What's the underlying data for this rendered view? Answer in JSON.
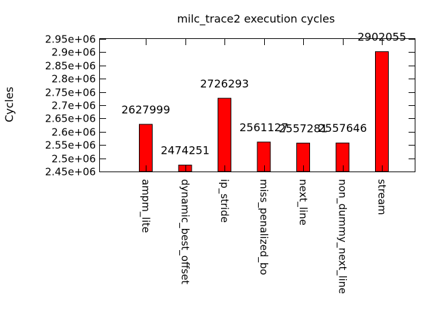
{
  "chart_data": {
    "type": "bar",
    "title": "milc_trace2 execution cycles",
    "xlabel": "",
    "ylabel": "Cycles",
    "categories": [
      "ampm_lite",
      "dynamic_best_offset",
      "ip_stride",
      "miss_penalized_bo",
      "next_line",
      "non_dummy_next_line",
      "stream"
    ],
    "values": [
      2627999,
      2474251,
      2726293,
      2561127,
      2557281,
      2557646,
      2902055
    ],
    "data_labels": [
      "2627999",
      "2474251",
      "2726293",
      "2561127",
      "2557281",
      "2557646",
      "2902055"
    ],
    "ylim": [
      2450000,
      2950000
    ],
    "yticks": [
      2450000,
      2500000,
      2550000,
      2600000,
      2650000,
      2700000,
      2750000,
      2800000,
      2850000,
      2900000,
      2950000
    ],
    "ytick_labels": [
      "2.45e+06",
      "2.5e+06",
      "2.55e+06",
      "2.6e+06",
      "2.65e+06",
      "2.7e+06",
      "2.75e+06",
      "2.8e+06",
      "2.85e+06",
      "2.9e+06",
      "2.95e+06"
    ],
    "bar_color": "#ff0000",
    "grid": false,
    "legend": "none"
  }
}
